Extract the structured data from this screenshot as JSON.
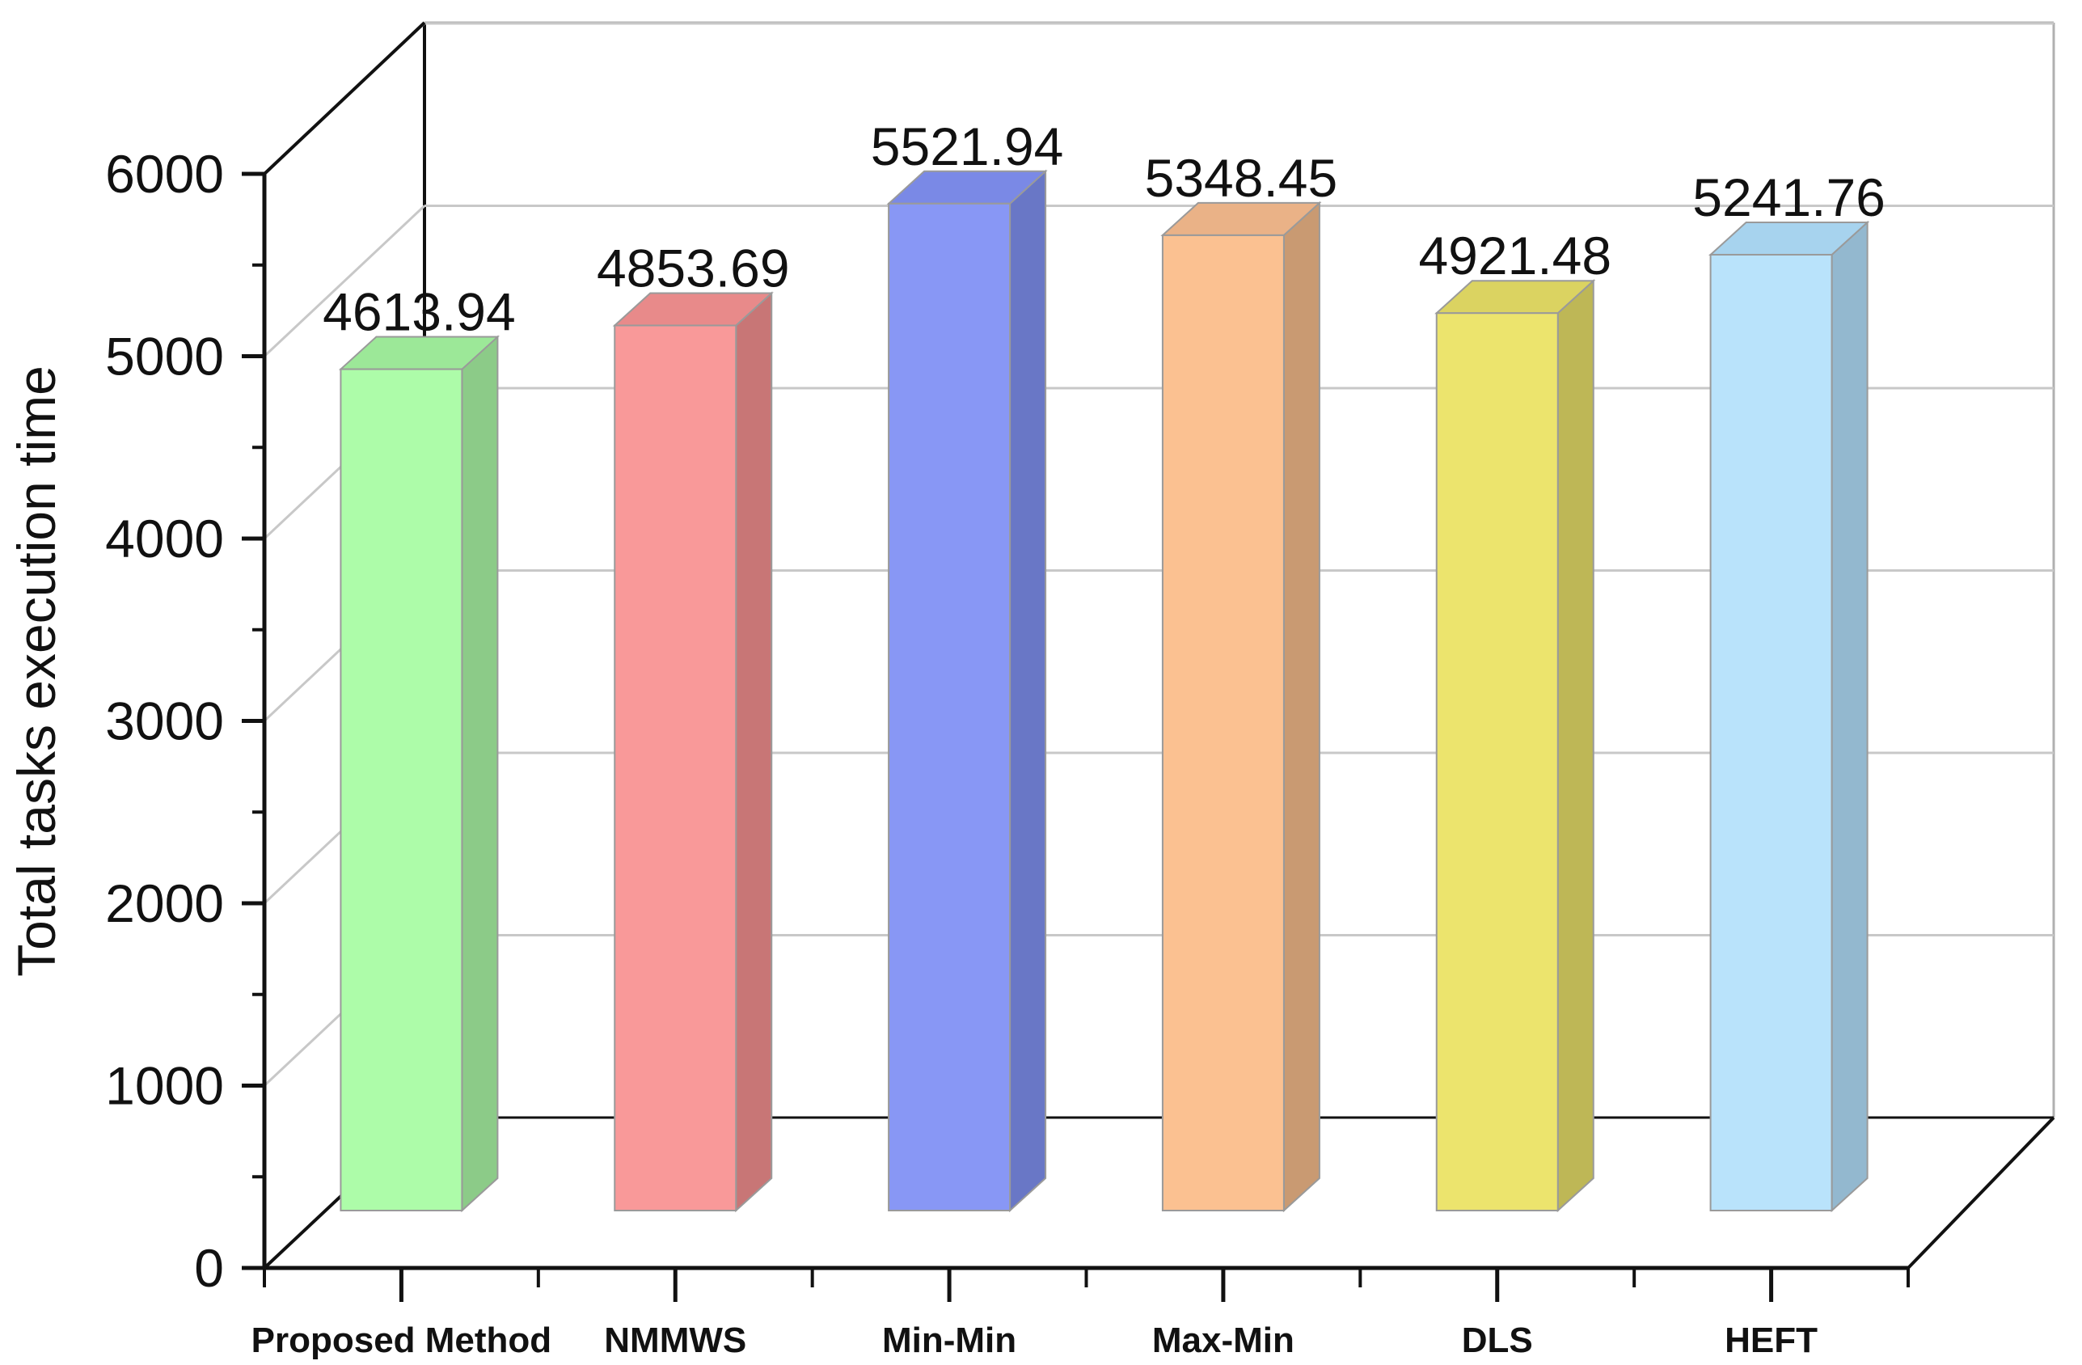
{
  "chart_data": {
    "type": "bar",
    "style": "3d",
    "title": "",
    "xlabel": "",
    "ylabel": "Total tasks execution time",
    "ylim": [
      0,
      6000
    ],
    "yticks": [
      0,
      1000,
      2000,
      3000,
      4000,
      5000,
      6000
    ],
    "categories": [
      "Proposed Method",
      "NMMWS",
      "Min-Min",
      "Max-Min",
      "DLS",
      "HEFT"
    ],
    "values": [
      4613.94,
      4853.69,
      5521.94,
      5348.45,
      4921.48,
      5241.76
    ],
    "value_labels": [
      "4613.94",
      "4853.69",
      "5521.94",
      "5348.45",
      "4921.48",
      "5241.76"
    ],
    "colors": [
      "#adfca9",
      "#f99999",
      "#8897f5",
      "#fbc191",
      "#ece46d",
      "#b9e3fb"
    ],
    "side_colors": [
      "#8ccb88",
      "#c87676",
      "#6977c6",
      "#c99a72",
      "#beb756",
      "#93b8cf"
    ],
    "top_colors": [
      "#9ce898",
      "#e88a8a",
      "#7a89e6",
      "#eab287",
      "#dbd361",
      "#a7d3ee"
    ],
    "grid": true,
    "legend": "none"
  }
}
